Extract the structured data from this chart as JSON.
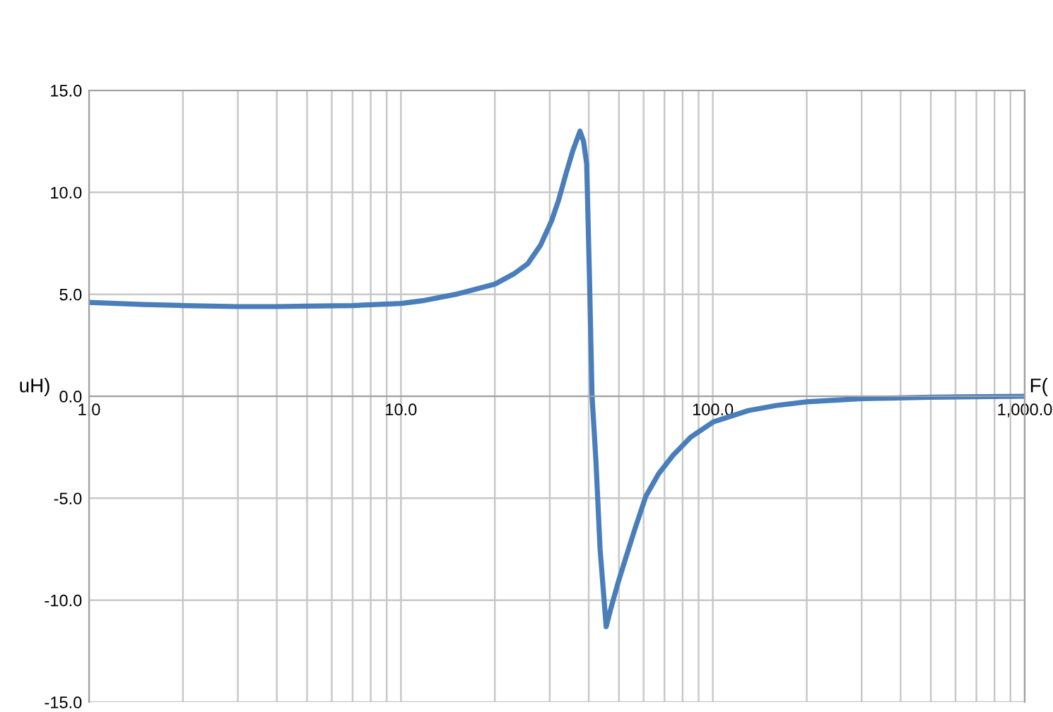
{
  "chart_data": {
    "type": "line",
    "xlabel": "F(",
    "ylabel": "uH)",
    "log": "x",
    "grid": true,
    "marker": "none",
    "line_style": "solid",
    "xlim": [
      1,
      1000
    ],
    "ylim": [
      -15,
      15
    ],
    "xticks": [
      {
        "value": 1,
        "label": "1.0"
      },
      {
        "value": 2,
        "label": null
      },
      {
        "value": 3,
        "label": null
      },
      {
        "value": 4,
        "label": null
      },
      {
        "value": 5,
        "label": null
      },
      {
        "value": 6,
        "label": null
      },
      {
        "value": 7,
        "label": null
      },
      {
        "value": 8,
        "label": null
      },
      {
        "value": 9,
        "label": null
      },
      {
        "value": 10,
        "label": "10.0"
      },
      {
        "value": 20,
        "label": null
      },
      {
        "value": 30,
        "label": null
      },
      {
        "value": 40,
        "label": null
      },
      {
        "value": 50,
        "label": null
      },
      {
        "value": 60,
        "label": null
      },
      {
        "value": 70,
        "label": null
      },
      {
        "value": 80,
        "label": null
      },
      {
        "value": 90,
        "label": null
      },
      {
        "value": 100,
        "label": "100.0"
      },
      {
        "value": 200,
        "label": null
      },
      {
        "value": 300,
        "label": null
      },
      {
        "value": 400,
        "label": null
      },
      {
        "value": 500,
        "label": null
      },
      {
        "value": 600,
        "label": null
      },
      {
        "value": 700,
        "label": null
      },
      {
        "value": 800,
        "label": null
      },
      {
        "value": 900,
        "label": null
      },
      {
        "value": 1000,
        "label": "1,000.0"
      }
    ],
    "yticks": [
      {
        "value": -15,
        "label": "-15.0"
      },
      {
        "value": -10,
        "label": "-10.0"
      },
      {
        "value": -5,
        "label": "-5.0"
      },
      {
        "value": 0,
        "label": "0.0"
      },
      {
        "value": 5,
        "label": "5.0"
      },
      {
        "value": 10,
        "label": "10.0"
      },
      {
        "value": 15,
        "label": "15.0"
      }
    ],
    "series": [
      {
        "color": "#4a7ebb",
        "x": [
          1,
          1.5,
          2,
          3,
          4,
          5,
          7,
          10,
          11.9,
          15,
          20,
          23,
          25.5,
          28,
          30.4,
          32,
          33.8,
          35.5,
          37.5,
          38.5,
          39.4,
          40.2,
          41,
          42.2,
          43.5,
          45.5,
          47.5,
          50,
          52.9,
          56,
          61,
          67,
          74.5,
          85,
          100.6,
          130,
          160,
          200,
          300,
          500,
          700,
          1000
        ],
        "values": [
          4.6,
          4.5,
          4.45,
          4.4,
          4.4,
          4.42,
          4.45,
          4.55,
          4.7,
          5.0,
          5.5,
          6.0,
          6.5,
          7.4,
          8.6,
          9.6,
          10.9,
          12.0,
          13.0,
          12.5,
          11.4,
          6.0,
          0,
          -3.2,
          -7.5,
          -11.3,
          -10.2,
          -9.0,
          -7.8,
          -6.6,
          -4.9,
          -3.8,
          -2.9,
          -2.0,
          -1.25,
          -0.7,
          -0.45,
          -0.27,
          -0.12,
          -0.05,
          -0.02,
          0.0
        ]
      }
    ]
  }
}
